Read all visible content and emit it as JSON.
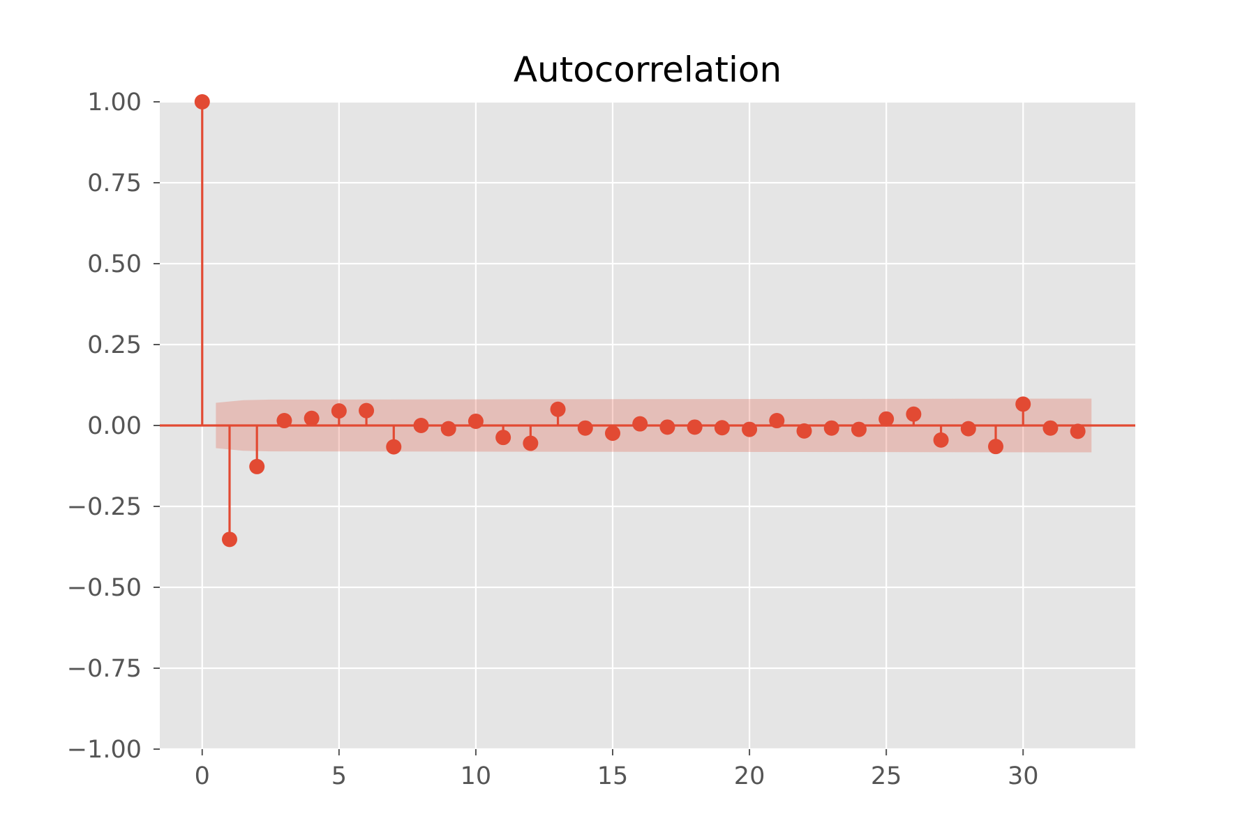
{
  "chart_data": {
    "type": "stem",
    "title": "Autocorrelation",
    "xlabel": "",
    "ylabel": "",
    "xlim": [
      -1.55,
      34.1
    ],
    "ylim": [
      -1.0,
      1.0
    ],
    "xticks": [
      0,
      5,
      10,
      15,
      20,
      25,
      30
    ],
    "xtick_labels": [
      "0",
      "5",
      "10",
      "15",
      "20",
      "25",
      "30"
    ],
    "yticks": [
      1.0,
      0.75,
      0.5,
      0.25,
      0.0,
      -0.25,
      -0.5,
      -0.75,
      -1.0
    ],
    "ytick_labels": [
      "1.00",
      "0.75",
      "0.50",
      "0.25",
      "0.00",
      "−0.25",
      "−0.50",
      "−0.75",
      "−1.00"
    ],
    "grid": true,
    "lags": [
      0,
      1,
      2,
      3,
      4,
      5,
      6,
      7,
      8,
      9,
      10,
      11,
      12,
      13,
      14,
      15,
      16,
      17,
      18,
      19,
      20,
      21,
      22,
      23,
      24,
      25,
      26,
      27,
      28,
      29,
      30,
      31,
      32
    ],
    "values": [
      1.0,
      -0.352,
      -0.127,
      0.015,
      0.022,
      0.045,
      0.046,
      -0.066,
      0.0,
      -0.01,
      0.013,
      -0.037,
      -0.055,
      0.05,
      -0.008,
      -0.024,
      0.005,
      -0.005,
      -0.005,
      -0.007,
      -0.012,
      0.015,
      -0.017,
      -0.008,
      -0.012,
      0.02,
      0.035,
      -0.045,
      -0.01,
      -0.065,
      0.066,
      -0.008,
      -0.018
    ],
    "confidence_band": {
      "x": [
        0.5,
        1.5,
        2.5,
        32.5
      ],
      "upper": [
        0.07,
        0.078,
        0.08,
        0.083
      ]
    },
    "colors": {
      "stem": "#E24A33",
      "band": "#E24A33",
      "plot_bg": "#E5E5E5",
      "grid": "#FFFFFF"
    }
  }
}
